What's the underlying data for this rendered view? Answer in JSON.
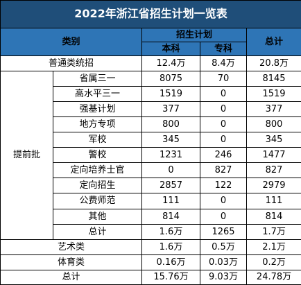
{
  "title": "2022年浙江省招生计划一览表",
  "header": {
    "category": "类别",
    "plan": "招生计划",
    "undergrad": "本科",
    "junior": "专科",
    "total": "总计"
  },
  "general": {
    "label": "普通类统招",
    "undergrad": "12.4万",
    "junior": "8.4万",
    "total": "20.8万"
  },
  "early_batch": {
    "label": "提前批",
    "rows": [
      {
        "label": "省属三一",
        "undergrad": "8075",
        "junior": "70",
        "total": "8145"
      },
      {
        "label": "高水平三一",
        "undergrad": "1519",
        "junior": "0",
        "total": "1519"
      },
      {
        "label": "强基计划",
        "undergrad": "377",
        "junior": "0",
        "total": "377"
      },
      {
        "label": "地方专项",
        "undergrad": "800",
        "junior": "0",
        "total": "800"
      },
      {
        "label": "军校",
        "undergrad": "345",
        "junior": "0",
        "total": "345"
      },
      {
        "label": "警校",
        "undergrad": "1231",
        "junior": "246",
        "total": "1477"
      },
      {
        "label": "定向培养士官",
        "undergrad": "0",
        "junior": "827",
        "total": "827"
      },
      {
        "label": "定向招生",
        "undergrad": "2857",
        "junior": "122",
        "total": "2979"
      },
      {
        "label": "公费师范",
        "undergrad": "111",
        "junior": "0",
        "total": "111"
      },
      {
        "label": "其他",
        "undergrad": "814",
        "junior": "0",
        "total": "814"
      },
      {
        "label": "总计",
        "undergrad": "1.6万",
        "junior": "1265",
        "total": "1.7万"
      }
    ]
  },
  "arts": {
    "label": "艺术类",
    "undergrad": "1.6万",
    "junior": "0.5万",
    "total": "2.1万"
  },
  "sports": {
    "label": "体育类",
    "undergrad": "0.16万",
    "junior": "0.03万",
    "total": "0.2万"
  },
  "grand_total": {
    "label": "总计",
    "undergrad": "15.76万",
    "junior": "9.03万",
    "total": "24.78万"
  }
}
